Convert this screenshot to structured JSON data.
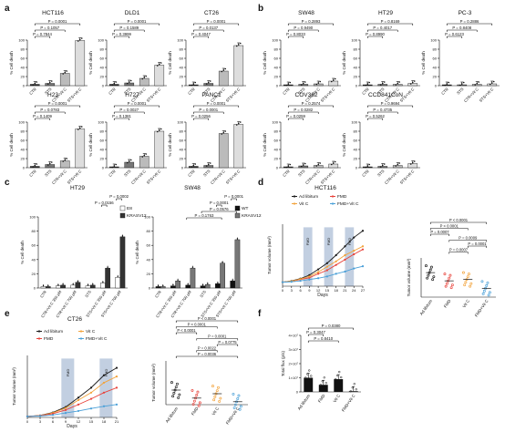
{
  "panels": [
    {
      "letter": "a",
      "charts": [
        {
          "title": "HCT116",
          "categories": [
            "CTR",
            "STS",
            "CTR+Vit C",
            "STS+Vit C"
          ],
          "values": [
            3,
            5,
            27,
            99
          ],
          "pvalues": [
            "P = 0.0001",
            "P = 0.1057",
            "P = 0.7844"
          ]
        },
        {
          "title": "DLD1",
          "categories": [
            "CTR",
            "STS",
            "CTR+Vit C",
            "STS+Vit C"
          ],
          "values": [
            3,
            6,
            16,
            45
          ],
          "pvalues": [
            "P = 0.0001",
            "P = 0.1589",
            "P = 0.3999"
          ]
        },
        {
          "title": "CT26",
          "categories": [
            "CTR",
            "STS",
            "CTR+Vit C",
            "STS+Vit C"
          ],
          "values": [
            2,
            5,
            32,
            88
          ],
          "pvalues": [
            "P = 0.0001",
            "P = 0.0137",
            "P = 0.4047"
          ]
        },
        {
          "title": "H23",
          "categories": [
            "CTR",
            "STS",
            "CTR+Vit C",
            "STS+Vit C"
          ],
          "values": [
            3,
            7,
            15,
            85
          ],
          "pvalues": [
            "P = 0.0001",
            "P = 0.0783",
            "P = 0.1409"
          ]
        },
        {
          "title": "H727",
          "categories": [
            "CTR",
            "STS",
            "CTR+Vit C",
            "STS+Vit C"
          ],
          "values": [
            2,
            12,
            25,
            80
          ],
          "pvalues": [
            "P = 0.0001",
            "P = 0.0027",
            "P = 0.1381"
          ]
        },
        {
          "title": "PANC1",
          "categories": [
            "CTR",
            "STS",
            "CTR+Vit C",
            "STS+Vit C"
          ],
          "values": [
            3,
            5,
            75,
            95
          ],
          "pvalues": [
            "P = 0.0001",
            "P = 0.0001",
            "P = 0.0256"
          ]
        }
      ]
    },
    {
      "letter": "b",
      "charts": [
        {
          "title": "SW48",
          "categories": [
            "CTR",
            "STS",
            "CTR+Vit C",
            "STS+Vit C"
          ],
          "values": [
            2,
            3,
            4,
            10
          ],
          "pvalues": [
            "P = 0.2893",
            "P = 0.9490",
            "P = 0.8033"
          ]
        },
        {
          "title": "HT29",
          "categories": [
            "CTR",
            "STS",
            "CTR+Vit C",
            "STS+Vit C"
          ],
          "values": [
            2,
            3,
            3,
            5
          ],
          "pvalues": [
            "P = 0.8169",
            "P = 0.4017",
            "P = 0.8990"
          ]
        },
        {
          "title": "PC-3",
          "categories": [
            "CTR",
            "STS",
            "CTR+Vit C",
            "STS+Vit C"
          ],
          "values": [
            2,
            2,
            3,
            4
          ],
          "pvalues": [
            "P = 0.2886",
            "P = 0.8408",
            "P = 0.6123"
          ]
        },
        {
          "title": "COV362",
          "categories": [
            "CTR",
            "STS",
            "CTR+Vit C",
            "STS+Vit C"
          ],
          "values": [
            2,
            4,
            5,
            8
          ],
          "pvalues": [
            "P = 0.2574",
            "P = 0.0282",
            "P = 0.0259"
          ]
        },
        {
          "title": "CCD841CoN",
          "categories": [
            "CTR",
            "STS",
            "CTR+Vit C",
            "STS+Vit C"
          ],
          "values": [
            2,
            3,
            5,
            9
          ],
          "pvalues": [
            "P = 0.9694",
            "P = 0.4735",
            "P = 0.5262"
          ]
        }
      ]
    },
    {
      "letter": "c"
    },
    {
      "letter": "d"
    },
    {
      "letter": "e"
    },
    {
      "letter": "f"
    }
  ],
  "chart_data": [
    {
      "type": "bar",
      "panel": "c",
      "title": "HT29",
      "ylabel": "% Cell death",
      "ylim": [
        0,
        100
      ],
      "categories": [
        "CTR",
        "CTR+Vit C 350 µM",
        "CTR+Vit C 700 µM",
        "STS",
        "STS+Vit C 350 µM",
        "STS+Vit C 700 µM"
      ],
      "series": [
        {
          "name": "E8",
          "values": [
            2,
            3,
            4,
            3,
            7,
            15
          ]
        },
        {
          "name": "KRASV12",
          "values": [
            2,
            4,
            8,
            4,
            28,
            72
          ]
        }
      ],
      "pvalues": [
        "P = 0.0002",
        "P = 0.0156"
      ]
    },
    {
      "type": "bar",
      "panel": "c",
      "title": "SW48",
      "ylabel": "% Cell death",
      "ylim": [
        0,
        100
      ],
      "categories": [
        "CTR",
        "CTR+Vit C 350 µM",
        "CTR+Vit C 700 µM",
        "STS",
        "STS+Vit C 350 µM",
        "STS+Vit C 700 µM"
      ],
      "series": [
        {
          "name": "WT",
          "values": [
            2,
            3,
            4,
            3,
            6,
            10
          ]
        },
        {
          "name": "KRASV12",
          "values": [
            2,
            10,
            28,
            5,
            35,
            68
          ]
        }
      ],
      "pvalues": [
        "P = 0.0001",
        "P = 0.0001",
        "P = 0.0576",
        "P = 0.1763"
      ]
    },
    {
      "type": "line",
      "panel": "d",
      "title": "HCT116",
      "xlabel": "Days",
      "ylabel": "Tumor volume (mm³)",
      "ylim": [
        0,
        1400
      ],
      "x": [
        0,
        3,
        6,
        9,
        12,
        15,
        18,
        21,
        24,
        27
      ],
      "series": [
        {
          "name": "Ad libitum",
          "values": [
            90,
            120,
            170,
            250,
            380,
            520,
            700,
            900,
            1100,
            1250
          ]
        },
        {
          "name": "FMD",
          "values": [
            90,
            110,
            150,
            190,
            280,
            360,
            480,
            600,
            720,
            830
          ]
        },
        {
          "name": "Vit C",
          "values": [
            90,
            115,
            160,
            220,
            320,
            440,
            560,
            700,
            800,
            900
          ]
        },
        {
          "name": "FMD+Vit C",
          "values": [
            90,
            100,
            120,
            150,
            180,
            220,
            280,
            330,
            400,
            450
          ]
        }
      ],
      "fmd_label": "FMD",
      "fmd_cycles": [
        [
          7,
          10
        ],
        [
          14,
          17
        ],
        [
          21,
          24
        ]
      ]
    },
    {
      "type": "scatter",
      "panel": "d",
      "ylabel": "Tumor volume (mm³)",
      "ylim": [
        0,
        2000
      ],
      "categories": [
        "Ad libitum",
        "FMD",
        "Vit C",
        "FMD+Vit C"
      ],
      "means": [
        1250,
        830,
        900,
        450
      ],
      "pvalues": [
        "P < 0.0001",
        "P < 0.0001",
        "P = 0.0007",
        "P = 0.0009",
        "P = 0.0001",
        "P = 0.0007"
      ]
    },
    {
      "type": "line",
      "panel": "e",
      "title": "CT26",
      "xlabel": "Days",
      "ylabel": "Tumor volume (mm³)",
      "ylim": [
        0,
        2500
      ],
      "x": [
        0,
        3,
        6,
        9,
        12,
        15,
        18,
        21
      ],
      "series": [
        {
          "name": "Ad libitum",
          "values": [
            40,
            80,
            200,
            420,
            800,
            1200,
            1700,
            2000
          ]
        },
        {
          "name": "Vit C",
          "values": [
            40,
            75,
            180,
            380,
            700,
            1000,
            1400,
            1650
          ]
        },
        {
          "name": "FMD",
          "values": [
            40,
            70,
            150,
            300,
            520,
            750,
            1000,
            1200
          ]
        },
        {
          "name": "FMD+Vit C",
          "values": [
            40,
            60,
            100,
            180,
            260,
            360,
            450,
            520
          ]
        }
      ],
      "fmd_label": "FMD",
      "fmd_cycles": [
        [
          8,
          11
        ],
        [
          17,
          20
        ]
      ]
    },
    {
      "type": "scatter",
      "panel": "e",
      "ylabel": "Tumor volume (mm³)",
      "ylim": [
        0,
        3000
      ],
      "categories": [
        "Ad libitum",
        "FMD",
        "Vit C",
        "FMD+Vit C"
      ],
      "means": [
        1000,
        450,
        750,
        200
      ],
      "pvalues": [
        "P < 0.0001",
        "P < 0.0001",
        "P < 0.0001",
        "P = 0.0001",
        "P = 0.0775",
        "P = 0.0022",
        "P = 0.0036"
      ]
    },
    {
      "type": "bar",
      "panel": "f",
      "ylabel": "Total flux (p/s)",
      "ylim": [
        0,
        40000000.0
      ],
      "yticks": [
        "0",
        "1×10⁷",
        "2×10⁷",
        "3×10⁷",
        "4×10⁷"
      ],
      "categories": [
        "Ad libitum",
        "FMD",
        "Vit C",
        "FMD+Vit C"
      ],
      "values": [
        10000000.0,
        5000000.0,
        9000000.0,
        500000.0
      ],
      "pvalues": [
        "P = 0.0380",
        "P = 0.3047",
        "P = 0.8410"
      ]
    }
  ],
  "shared": {
    "ylabel_pct": "% Cell death",
    "y_ticks_pct": [
      "0",
      "20",
      "40",
      "60",
      "80",
      "100"
    ],
    "colors": {
      "dark": "#333333",
      "mid": "#777777",
      "light": "#bbbbbb",
      "lighter": "#dddddd",
      "black": "#1a1a1a",
      "ad_libitum": "#1a1a1a",
      "fmd": "#e8423a",
      "vit_c": "#f2a23a",
      "fmd_vit_c": "#4aa0d8",
      "fmd_band": "#8fa8c8"
    }
  }
}
